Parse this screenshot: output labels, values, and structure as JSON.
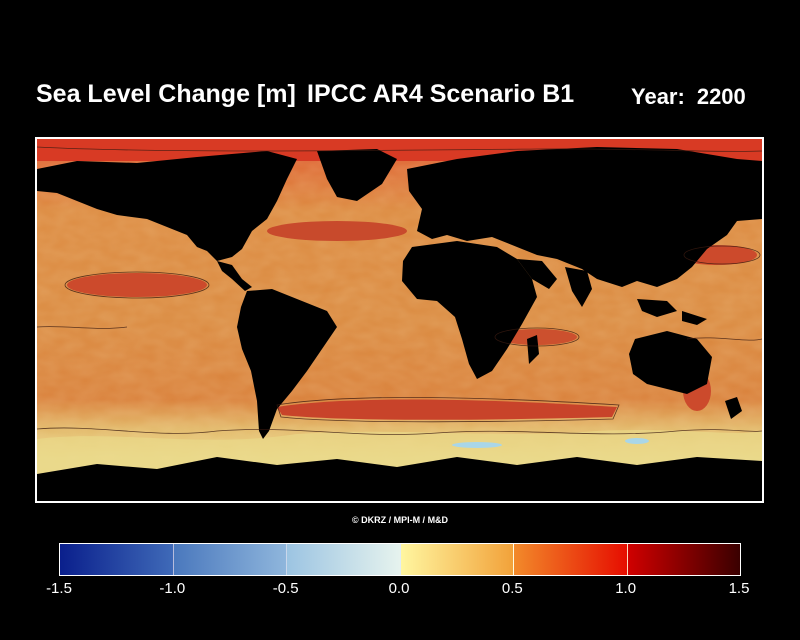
{
  "header": {
    "title": "Sea Level Change [m]",
    "scenario": "IPCC AR4 Scenario B1",
    "year_label": "Year:",
    "year_value": "2200"
  },
  "credit": "© DKRZ / MPI-M / M&D",
  "colorbar": {
    "ticks": [
      "-1.5",
      "-1.0",
      "-0.5",
      "0.0",
      "0.5",
      "1.0",
      "1.5"
    ],
    "segments": [
      {
        "from": "#0a1f8c",
        "to": "#3f6ab8"
      },
      {
        "from": "#4a78bd",
        "to": "#8fb6dc"
      },
      {
        "from": "#9cc4e2",
        "to": "#e6f3ee"
      },
      {
        "from": "#fff6a0",
        "to": "#f2a23a"
      },
      {
        "from": "#f28a2a",
        "to": "#e60d00"
      },
      {
        "from": "#d00000",
        "to": "#3a0000"
      }
    ]
  },
  "colors": {
    "ocean_base": "#d9853c",
    "ocean_high": "#c9432a",
    "ocean_low": "#e8d580",
    "land": "#000000",
    "background": "#000000"
  }
}
